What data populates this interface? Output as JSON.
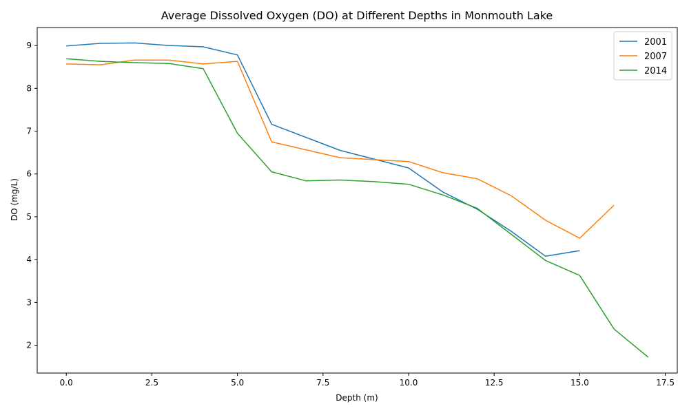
{
  "chart_data": {
    "type": "line",
    "title": "Average Dissolved Oxygen (DO) at Different Depths in Monmouth Lake",
    "xlabel": "Depth (m)",
    "ylabel": "DO (mg/L)",
    "xlim": [
      -0.85,
      17.85
    ],
    "ylim": [
      1.35,
      9.42
    ],
    "xticks": [
      0.0,
      2.5,
      5.0,
      7.5,
      10.0,
      12.5,
      15.0,
      17.5
    ],
    "xtick_labels": [
      "0.0",
      "2.5",
      "5.0",
      "7.5",
      "10.0",
      "12.5",
      "15.0",
      "17.5"
    ],
    "yticks": [
      2,
      3,
      4,
      5,
      6,
      7,
      8,
      9
    ],
    "ytick_labels": [
      "2",
      "3",
      "4",
      "5",
      "6",
      "7",
      "8",
      "9"
    ],
    "grid": false,
    "legend_position": "top-right",
    "series": [
      {
        "name": "2001",
        "color": "#1f77b4",
        "x": [
          0,
          1,
          2,
          3,
          4,
          5,
          6,
          8,
          10,
          11,
          12,
          13,
          14,
          15
        ],
        "y": [
          8.99,
          9.05,
          9.06,
          9.0,
          8.97,
          8.78,
          7.16,
          6.55,
          6.14,
          5.58,
          5.18,
          4.66,
          4.08,
          4.21
        ]
      },
      {
        "name": "2007",
        "color": "#ff7f0e",
        "x": [
          0,
          1,
          2,
          3,
          4,
          5,
          6,
          8,
          10,
          11,
          12,
          13,
          14,
          15,
          16
        ],
        "y": [
          8.57,
          8.55,
          8.66,
          8.66,
          8.57,
          8.63,
          6.75,
          6.38,
          6.29,
          6.03,
          5.89,
          5.49,
          4.92,
          4.5,
          5.27
        ]
      },
      {
        "name": "2014",
        "color": "#2ca02c",
        "x": [
          0,
          1,
          2,
          3,
          4,
          5,
          6,
          7,
          8,
          9,
          10,
          11,
          12,
          13,
          14,
          15,
          16,
          17
        ],
        "y": [
          8.69,
          8.63,
          8.6,
          8.58,
          8.46,
          6.95,
          6.05,
          5.84,
          5.86,
          5.82,
          5.76,
          5.51,
          5.2,
          4.59,
          3.98,
          3.63,
          2.38,
          1.72
        ]
      }
    ]
  }
}
